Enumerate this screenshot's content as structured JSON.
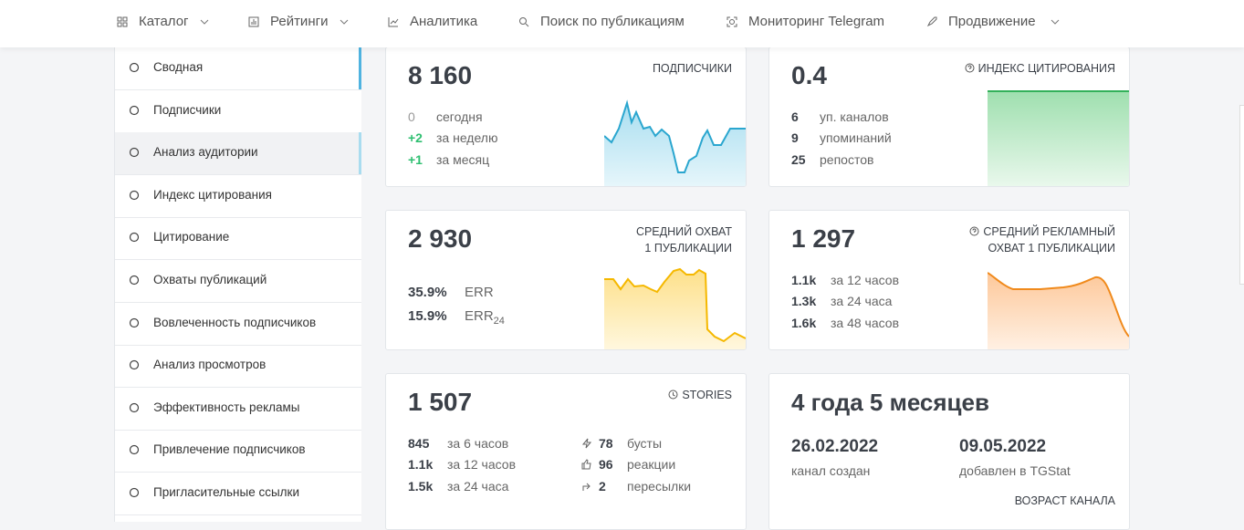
{
  "nav": {
    "items": [
      "Каталог",
      "Рейтинги",
      "Аналитика",
      "Поиск по публикациям",
      "Мониторинг Telegram",
      "Продвижение"
    ]
  },
  "sidebar": {
    "items": [
      "Сводная",
      "Подписчики",
      "Анализ аудитории",
      "Индекс цитирования",
      "Цитирование",
      "Охваты публикаций",
      "Вовлеченность подписчиков",
      "Анализ просмотров",
      "Эффективность рекламы",
      "Привлечение подписчиков",
      "Пригласительные ссылки"
    ]
  },
  "cards": [
    {
      "value": "8 160",
      "title": [
        "ПОДПИСЧИКИ"
      ],
      "stats": [
        {
          "value": "0",
          "label": "сегодня"
        },
        {
          "value": "+2",
          "label": "за неделю"
        },
        {
          "value": "+1",
          "label": "за месяц"
        }
      ]
    },
    {
      "value": "0.4",
      "title": [
        "ИНДЕКС ЦИТИРОВАНИЯ"
      ],
      "stats": [
        {
          "value": "6",
          "label": "уп. каналов"
        },
        {
          "value": "9",
          "label": "упоминаний"
        },
        {
          "value": "25",
          "label": "репостов"
        }
      ]
    },
    {
      "value": "2 930",
      "title": [
        "СРЕДНИЙ ОХВАТ",
        "1 ПУБЛИКАЦИИ"
      ],
      "stats": [
        {
          "value": "35.9%",
          "label": "ERR"
        },
        {
          "value": "15.9%",
          "label": "ERR",
          "sub": "24"
        }
      ]
    },
    {
      "value": "1 297",
      "title": [
        "СРЕДНИЙ РЕКЛАМНЫЙ",
        "ОХВАТ 1 ПУБЛИКАЦИИ"
      ],
      "stats": [
        {
          "value": "1.1k",
          "label": "за 12 часов"
        },
        {
          "value": "1.3k",
          "label": "за 24 часа"
        },
        {
          "value": "1.6k",
          "label": "за 48 часов"
        }
      ]
    },
    {
      "value": "1 507",
      "title": [
        "STORIES"
      ],
      "stats": [
        {
          "value": "845",
          "label": "за 6 часов"
        },
        {
          "value": "1.1k",
          "label": "за 12 часов"
        },
        {
          "value": "1.5k",
          "label": "за 24 часа"
        }
      ],
      "extra": [
        {
          "value": "78",
          "label": "бусты"
        },
        {
          "value": "96",
          "label": "реакции"
        },
        {
          "value": "2",
          "label": "пересылки"
        }
      ]
    },
    {
      "value": "4 года 5 месяцев",
      "title": [
        "ВОЗРАСТ КАНАЛА"
      ],
      "dates": [
        {
          "value": "26.02.2022",
          "label": "канал создан"
        },
        {
          "value": "09.05.2022",
          "label": "добавлен в TGStat"
        }
      ]
    }
  ]
}
